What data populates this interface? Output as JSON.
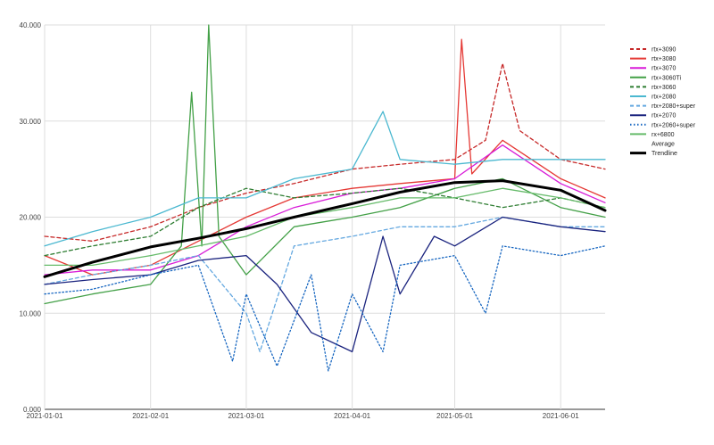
{
  "chart_data": {
    "type": "line",
    "title": "",
    "xlabel": "",
    "ylabel": "",
    "x_range": [
      "2021-01-01",
      "2021-06-14"
    ],
    "ylim": [
      0,
      40
    ],
    "grid": true,
    "legend_position": "right",
    "x_ticks": [
      {
        "date": "2021-01-01",
        "label": "2021-01-01"
      },
      {
        "date": "2021-02-01",
        "label": "2021-02-01"
      },
      {
        "date": "2021-03-01",
        "label": "2021-03-01"
      },
      {
        "date": "2021-04-01",
        "label": "2021-04-01"
      },
      {
        "date": "2021-05-01",
        "label": "2021-05-01"
      },
      {
        "date": "2021-06-01",
        "label": "2021-06-01"
      }
    ],
    "y_ticks": [
      {
        "value": 0,
        "label": "0.000"
      },
      {
        "value": 10,
        "label": "10.000"
      },
      {
        "value": 20,
        "label": "20.000"
      },
      {
        "value": 30,
        "label": "30.000"
      },
      {
        "value": 40,
        "label": "40.000"
      }
    ],
    "series": [
      {
        "name": "rtx+3090",
        "color": "#c62828",
        "dash": "dash",
        "points": [
          [
            "2021-01-01",
            18
          ],
          [
            "2021-01-15",
            17.5
          ],
          [
            "2021-02-01",
            19
          ],
          [
            "2021-02-15",
            21
          ],
          [
            "2021-03-01",
            22.5
          ],
          [
            "2021-03-15",
            23.5
          ],
          [
            "2021-04-01",
            25
          ],
          [
            "2021-04-15",
            25.5
          ],
          [
            "2021-05-01",
            26
          ],
          [
            "2021-05-10",
            28
          ],
          [
            "2021-05-15",
            36
          ],
          [
            "2021-05-20",
            29
          ],
          [
            "2021-06-01",
            26
          ],
          [
            "2021-06-14",
            25
          ]
        ]
      },
      {
        "name": "rtx+3080",
        "color": "#e53935",
        "dash": "solid",
        "points": [
          [
            "2021-01-01",
            16
          ],
          [
            "2021-01-15",
            14
          ],
          [
            "2021-02-01",
            15
          ],
          [
            "2021-02-15",
            17.5
          ],
          [
            "2021-03-01",
            20
          ],
          [
            "2021-03-15",
            22
          ],
          [
            "2021-04-01",
            23
          ],
          [
            "2021-04-15",
            23.5
          ],
          [
            "2021-05-01",
            24
          ],
          [
            "2021-05-03",
            38.5
          ],
          [
            "2021-05-06",
            24.5
          ],
          [
            "2021-05-15",
            28
          ],
          [
            "2021-06-01",
            24
          ],
          [
            "2021-06-14",
            22
          ]
        ]
      },
      {
        "name": "rtx+3070",
        "color": "#d81bd8",
        "dash": "solid",
        "points": [
          [
            "2021-01-01",
            14
          ],
          [
            "2021-01-15",
            14.5
          ],
          [
            "2021-02-01",
            14.5
          ],
          [
            "2021-02-15",
            16
          ],
          [
            "2021-03-01",
            19
          ],
          [
            "2021-03-15",
            21
          ],
          [
            "2021-04-01",
            22.5
          ],
          [
            "2021-04-15",
            23
          ],
          [
            "2021-05-01",
            24
          ],
          [
            "2021-05-15",
            27.5
          ],
          [
            "2021-06-01",
            23.5
          ],
          [
            "2021-06-14",
            21.5
          ]
        ]
      },
      {
        "name": "rtx+3060Ti",
        "color": "#43a047",
        "dash": "solid",
        "points": [
          [
            "2021-01-01",
            11
          ],
          [
            "2021-01-15",
            12
          ],
          [
            "2021-02-01",
            13
          ],
          [
            "2021-02-10",
            17
          ],
          [
            "2021-02-13",
            33
          ],
          [
            "2021-02-16",
            17
          ],
          [
            "2021-02-18",
            40
          ],
          [
            "2021-02-21",
            18
          ],
          [
            "2021-03-01",
            14
          ],
          [
            "2021-03-15",
            19
          ],
          [
            "2021-04-01",
            20
          ],
          [
            "2021-04-15",
            21
          ],
          [
            "2021-05-01",
            23
          ],
          [
            "2021-05-15",
            24
          ],
          [
            "2021-06-01",
            21
          ],
          [
            "2021-06-14",
            20
          ]
        ]
      },
      {
        "name": "rtx+3060",
        "color": "#2e7d32",
        "dash": "dash",
        "points": [
          [
            "2021-01-01",
            16
          ],
          [
            "2021-01-15",
            17
          ],
          [
            "2021-02-01",
            18
          ],
          [
            "2021-02-15",
            21
          ],
          [
            "2021-03-01",
            23
          ],
          [
            "2021-03-15",
            22
          ],
          [
            "2021-04-01",
            22.5
          ],
          [
            "2021-04-15",
            23
          ],
          [
            "2021-05-01",
            22
          ],
          [
            "2021-05-15",
            21
          ],
          [
            "2021-06-01",
            22
          ],
          [
            "2021-06-14",
            21
          ]
        ]
      },
      {
        "name": "rtx+2080",
        "color": "#4bb8d0",
        "dash": "solid",
        "points": [
          [
            "2021-01-01",
            17
          ],
          [
            "2021-01-15",
            18.5
          ],
          [
            "2021-02-01",
            20
          ],
          [
            "2021-02-15",
            22
          ],
          [
            "2021-03-01",
            22
          ],
          [
            "2021-03-15",
            24
          ],
          [
            "2021-04-01",
            25
          ],
          [
            "2021-04-10",
            31
          ],
          [
            "2021-04-15",
            26
          ],
          [
            "2021-05-01",
            25.5
          ],
          [
            "2021-05-15",
            26
          ],
          [
            "2021-06-01",
            26
          ],
          [
            "2021-06-14",
            26
          ]
        ]
      },
      {
        "name": "rtx+2080+super",
        "color": "#64a8e0",
        "dash": "dash",
        "points": [
          [
            "2021-01-01",
            13
          ],
          [
            "2021-01-15",
            14
          ],
          [
            "2021-02-01",
            15
          ],
          [
            "2021-02-15",
            16
          ],
          [
            "2021-03-01",
            10
          ],
          [
            "2021-03-05",
            6
          ],
          [
            "2021-03-15",
            17
          ],
          [
            "2021-04-01",
            18
          ],
          [
            "2021-04-15",
            19
          ],
          [
            "2021-05-01",
            19
          ],
          [
            "2021-05-15",
            20
          ],
          [
            "2021-06-01",
            19
          ],
          [
            "2021-06-14",
            19
          ]
        ]
      },
      {
        "name": "rtx+2070",
        "color": "#1a237e",
        "dash": "solid",
        "points": [
          [
            "2021-01-01",
            13
          ],
          [
            "2021-01-15",
            13.5
          ],
          [
            "2021-02-01",
            14
          ],
          [
            "2021-02-15",
            15.5
          ],
          [
            "2021-03-01",
            16
          ],
          [
            "2021-03-10",
            13
          ],
          [
            "2021-03-20",
            8
          ],
          [
            "2021-04-01",
            6
          ],
          [
            "2021-04-10",
            18
          ],
          [
            "2021-04-15",
            12
          ],
          [
            "2021-04-25",
            18
          ],
          [
            "2021-05-01",
            17
          ],
          [
            "2021-05-15",
            20
          ],
          [
            "2021-06-01",
            19
          ],
          [
            "2021-06-14",
            18.5
          ]
        ]
      },
      {
        "name": "rtx+2060+super",
        "color": "#1565c0",
        "dash": "dot",
        "points": [
          [
            "2021-01-01",
            12
          ],
          [
            "2021-01-15",
            12.5
          ],
          [
            "2021-02-01",
            14
          ],
          [
            "2021-02-15",
            15
          ],
          [
            "2021-02-25",
            5
          ],
          [
            "2021-03-01",
            12
          ],
          [
            "2021-03-10",
            4.5
          ],
          [
            "2021-03-20",
            14
          ],
          [
            "2021-03-25",
            4
          ],
          [
            "2021-04-01",
            12
          ],
          [
            "2021-04-10",
            6
          ],
          [
            "2021-04-15",
            15
          ],
          [
            "2021-05-01",
            16
          ],
          [
            "2021-05-10",
            10
          ],
          [
            "2021-05-15",
            17
          ],
          [
            "2021-06-01",
            16
          ],
          [
            "2021-06-14",
            17
          ]
        ]
      },
      {
        "name": "rx+6800",
        "color": "#66bb6a",
        "dash": "solid",
        "points": [
          [
            "2021-01-01",
            15
          ],
          [
            "2021-01-15",
            15
          ],
          [
            "2021-02-01",
            16
          ],
          [
            "2021-02-15",
            17
          ],
          [
            "2021-03-01",
            18
          ],
          [
            "2021-03-15",
            20
          ],
          [
            "2021-04-01",
            21
          ],
          [
            "2021-04-15",
            22
          ],
          [
            "2021-05-01",
            22
          ],
          [
            "2021-05-15",
            23
          ],
          [
            "2021-06-01",
            22
          ],
          [
            "2021-06-14",
            21
          ]
        ]
      },
      {
        "name": "Average",
        "color": "#ffffff",
        "dash": "none",
        "points": []
      },
      {
        "name": "Trendline",
        "color": "#000000",
        "dash": "solid",
        "points": [
          [
            "2021-01-01",
            13.8
          ],
          [
            "2021-01-15",
            15.3
          ],
          [
            "2021-02-01",
            16.9
          ],
          [
            "2021-02-15",
            17.8
          ],
          [
            "2021-03-01",
            18.8
          ],
          [
            "2021-03-15",
            20.0
          ],
          [
            "2021-04-01",
            21.4
          ],
          [
            "2021-04-15",
            22.6
          ],
          [
            "2021-05-01",
            23.6
          ],
          [
            "2021-05-15",
            23.8
          ],
          [
            "2021-06-01",
            22.8
          ],
          [
            "2021-06-14",
            20.7
          ]
        ]
      }
    ]
  }
}
